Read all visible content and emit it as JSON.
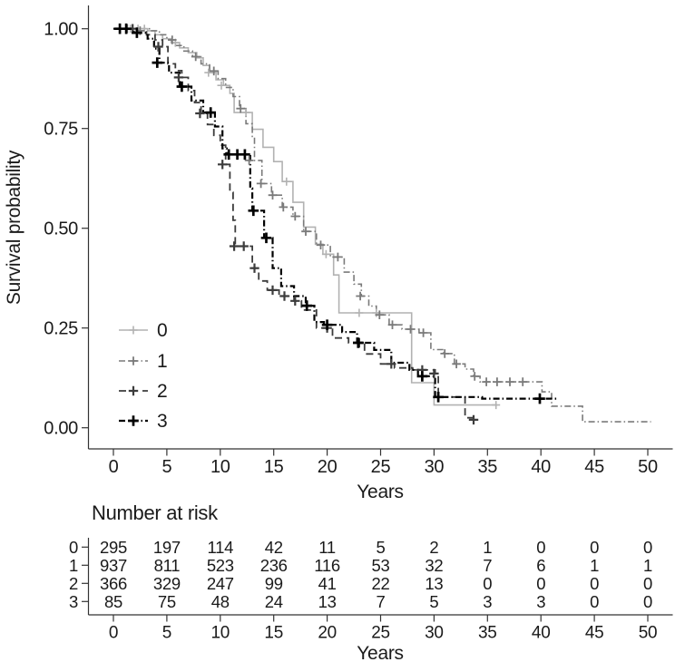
{
  "chart_data": {
    "type": "line",
    "subtype": "kaplan-meier-step",
    "title": "",
    "xlabel": "Years",
    "ylabel": "Survival probability",
    "xlim": [
      0,
      50
    ],
    "ylim": [
      0,
      1
    ],
    "grid": false,
    "x_ticks": [
      0,
      5,
      10,
      15,
      20,
      25,
      30,
      35,
      40,
      45,
      50
    ],
    "y_ticks": [
      {
        "value": 1.0,
        "label": "1.00"
      },
      {
        "value": 0.75,
        "label": "0.75"
      },
      {
        "value": 0.5,
        "label": "0.50"
      },
      {
        "value": 0.25,
        "label": "0.25"
      },
      {
        "value": 0.0,
        "label": "0.00"
      }
    ],
    "legend": {
      "position": "inside-lower-left",
      "entries": [
        "0",
        "1",
        "2",
        "3"
      ]
    },
    "series": [
      {
        "name": "0",
        "color": "#b2b2b2",
        "linetype": "solid",
        "steps": [
          [
            0,
            1.0
          ],
          [
            3.2,
            0.995
          ],
          [
            3.9,
            0.985
          ],
          [
            4.6,
            0.975
          ],
          [
            5.4,
            0.965
          ],
          [
            6.2,
            0.952
          ],
          [
            7.0,
            0.94
          ],
          [
            7.8,
            0.927
          ],
          [
            8.4,
            0.908
          ],
          [
            9.0,
            0.89
          ],
          [
            9.6,
            0.872
          ],
          [
            10.3,
            0.858
          ],
          [
            10.9,
            0.838
          ],
          [
            11.3,
            0.79
          ],
          [
            13.0,
            0.748
          ],
          [
            14.0,
            0.703
          ],
          [
            15.0,
            0.667
          ],
          [
            15.8,
            0.617
          ],
          [
            16.8,
            0.565
          ],
          [
            17.8,
            0.503
          ],
          [
            18.9,
            0.46
          ],
          [
            19.6,
            0.435
          ],
          [
            20.6,
            0.383
          ],
          [
            21.1,
            0.288
          ],
          [
            27.9,
            0.113
          ],
          [
            30.0,
            0.057
          ],
          [
            35.9,
            0.057
          ]
        ],
        "censors": [
          [
            1.6,
            1.0
          ],
          [
            2.3,
            1.0
          ],
          [
            2.9,
            1.0
          ],
          [
            5.8,
            0.965
          ],
          [
            8.9,
            0.89
          ],
          [
            10.1,
            0.858
          ],
          [
            12.4,
            0.79
          ],
          [
            16.2,
            0.617
          ],
          [
            19.9,
            0.435
          ],
          [
            23.0,
            0.288
          ],
          [
            24.6,
            0.288
          ],
          [
            35.8,
            0.057
          ]
        ]
      },
      {
        "name": "1",
        "color": "#7a7a7a",
        "linetype": "dashdot",
        "steps": [
          [
            0,
            1.0
          ],
          [
            3.5,
            0.995
          ],
          [
            4.3,
            0.985
          ],
          [
            5.0,
            0.972
          ],
          [
            5.8,
            0.958
          ],
          [
            6.6,
            0.944
          ],
          [
            7.4,
            0.93
          ],
          [
            8.2,
            0.912
          ],
          [
            9.0,
            0.894
          ],
          [
            9.8,
            0.875
          ],
          [
            10.5,
            0.853
          ],
          [
            11.2,
            0.83
          ],
          [
            11.8,
            0.8
          ],
          [
            12.4,
            0.762
          ],
          [
            13.0,
            0.73
          ],
          [
            13.2,
            0.67
          ],
          [
            13.9,
            0.612
          ],
          [
            14.8,
            0.583
          ],
          [
            15.8,
            0.553
          ],
          [
            16.8,
            0.53
          ],
          [
            17.8,
            0.492
          ],
          [
            19.0,
            0.458
          ],
          [
            20.3,
            0.428
          ],
          [
            21.6,
            0.39
          ],
          [
            22.5,
            0.36
          ],
          [
            23.2,
            0.33
          ],
          [
            23.9,
            0.305
          ],
          [
            24.6,
            0.283
          ],
          [
            25.8,
            0.258
          ],
          [
            27.0,
            0.247
          ],
          [
            28.6,
            0.238
          ],
          [
            29.7,
            0.196
          ],
          [
            30.9,
            0.186
          ],
          [
            31.9,
            0.16
          ],
          [
            32.9,
            0.147
          ],
          [
            33.7,
            0.129
          ],
          [
            34.3,
            0.115
          ],
          [
            40.1,
            0.09
          ],
          [
            41.0,
            0.054
          ],
          [
            43.9,
            0.015
          ],
          [
            50.3,
            0.015
          ]
        ],
        "censors": [
          [
            1.3,
            1.0
          ],
          [
            2.5,
            0.995
          ],
          [
            5.5,
            0.972
          ],
          [
            7.7,
            0.93
          ],
          [
            9.4,
            0.894
          ],
          [
            11.9,
            0.8
          ],
          [
            12.7,
            0.67
          ],
          [
            13.8,
            0.612
          ],
          [
            14.9,
            0.583
          ],
          [
            15.9,
            0.553
          ],
          [
            17.0,
            0.53
          ],
          [
            18.0,
            0.492
          ],
          [
            19.4,
            0.458
          ],
          [
            21.0,
            0.428
          ],
          [
            23.1,
            0.33
          ],
          [
            24.9,
            0.283
          ],
          [
            26.1,
            0.258
          ],
          [
            27.8,
            0.247
          ],
          [
            29.0,
            0.238
          ],
          [
            31.0,
            0.186
          ],
          [
            32.1,
            0.16
          ],
          [
            33.8,
            0.129
          ],
          [
            34.9,
            0.115
          ],
          [
            35.9,
            0.115
          ],
          [
            37.1,
            0.115
          ],
          [
            38.3,
            0.115
          ]
        ]
      },
      {
        "name": "2",
        "color": "#3c3c3c",
        "linetype": "dashed",
        "steps": [
          [
            0,
            1.0
          ],
          [
            2.3,
            0.995
          ],
          [
            3.1,
            0.985
          ],
          [
            3.9,
            0.972
          ],
          [
            4.6,
            0.955
          ],
          [
            5.1,
            0.912
          ],
          [
            5.8,
            0.895
          ],
          [
            6.4,
            0.878
          ],
          [
            7.0,
            0.845
          ],
          [
            7.6,
            0.815
          ],
          [
            8.2,
            0.788
          ],
          [
            8.8,
            0.76
          ],
          [
            9.4,
            0.733
          ],
          [
            10.0,
            0.708
          ],
          [
            10.5,
            0.66
          ],
          [
            10.9,
            0.59
          ],
          [
            11.2,
            0.52
          ],
          [
            11.4,
            0.455
          ],
          [
            13.0,
            0.4
          ],
          [
            13.6,
            0.368
          ],
          [
            14.4,
            0.345
          ],
          [
            15.5,
            0.33
          ],
          [
            16.9,
            0.318
          ],
          [
            17.6,
            0.295
          ],
          [
            19.0,
            0.25
          ],
          [
            20.5,
            0.225
          ],
          [
            22.0,
            0.213
          ],
          [
            23.5,
            0.185
          ],
          [
            25.0,
            0.16
          ],
          [
            26.3,
            0.15
          ],
          [
            28.0,
            0.145
          ],
          [
            30.1,
            0.136
          ],
          [
            30.4,
            0.077
          ],
          [
            32.9,
            0.025
          ],
          [
            33.8,
            0.02
          ]
        ],
        "censors": [
          [
            1.8,
            1.0
          ],
          [
            4.2,
            0.955
          ],
          [
            6.1,
            0.878
          ],
          [
            8.1,
            0.788
          ],
          [
            10.2,
            0.66
          ],
          [
            11.3,
            0.455
          ],
          [
            12.2,
            0.455
          ],
          [
            13.2,
            0.4
          ],
          [
            14.9,
            0.345
          ],
          [
            16.0,
            0.33
          ],
          [
            17.0,
            0.318
          ],
          [
            20.0,
            0.25
          ],
          [
            23.0,
            0.213
          ],
          [
            26.0,
            0.16
          ],
          [
            28.9,
            0.145
          ],
          [
            30.0,
            0.136
          ],
          [
            33.7,
            0.02
          ]
        ]
      },
      {
        "name": "3",
        "color": "#000000",
        "linetype": "dashdot",
        "steps": [
          [
            0,
            1.0
          ],
          [
            1.9,
            0.99
          ],
          [
            3.2,
            0.975
          ],
          [
            3.8,
            0.95
          ],
          [
            4.3,
            0.915
          ],
          [
            5.2,
            0.89
          ],
          [
            6.2,
            0.855
          ],
          [
            7.3,
            0.82
          ],
          [
            8.4,
            0.79
          ],
          [
            9.5,
            0.755
          ],
          [
            10.2,
            0.7
          ],
          [
            10.6,
            0.685
          ],
          [
            12.8,
            0.6
          ],
          [
            13.0,
            0.544
          ],
          [
            14.1,
            0.476
          ],
          [
            14.9,
            0.4
          ],
          [
            15.7,
            0.355
          ],
          [
            16.9,
            0.33
          ],
          [
            18.0,
            0.306
          ],
          [
            18.8,
            0.265
          ],
          [
            19.7,
            0.258
          ],
          [
            21.4,
            0.24
          ],
          [
            22.8,
            0.213
          ],
          [
            24.4,
            0.195
          ],
          [
            26.0,
            0.163
          ],
          [
            27.7,
            0.145
          ],
          [
            28.5,
            0.129
          ],
          [
            30.1,
            0.077
          ],
          [
            34.5,
            0.073
          ],
          [
            41.5,
            0.073
          ]
        ],
        "censors": [
          [
            0.6,
            1.0
          ],
          [
            1.2,
            1.0
          ],
          [
            2.2,
            0.99
          ],
          [
            4.1,
            0.915
          ],
          [
            6.4,
            0.855
          ],
          [
            9.1,
            0.79
          ],
          [
            10.8,
            0.685
          ],
          [
            11.6,
            0.685
          ],
          [
            12.3,
            0.685
          ],
          [
            13.1,
            0.544
          ],
          [
            14.3,
            0.476
          ],
          [
            18.1,
            0.306
          ],
          [
            20.0,
            0.258
          ],
          [
            22.9,
            0.213
          ],
          [
            28.9,
            0.129
          ],
          [
            30.4,
            0.077
          ],
          [
            39.9,
            0.073
          ]
        ]
      }
    ],
    "risk_table": {
      "title": "Number at risk",
      "xlabel": "Years",
      "times": [
        0,
        5,
        10,
        15,
        20,
        25,
        30,
        35,
        40,
        45,
        50
      ],
      "rows": [
        {
          "label": "0",
          "counts": [
            295,
            197,
            114,
            42,
            11,
            5,
            2,
            1,
            0,
            0,
            0
          ]
        },
        {
          "label": "1",
          "counts": [
            937,
            811,
            523,
            236,
            116,
            53,
            32,
            7,
            6,
            1,
            1
          ]
        },
        {
          "label": "2",
          "counts": [
            366,
            329,
            247,
            99,
            41,
            22,
            13,
            0,
            0,
            0,
            0
          ]
        },
        {
          "label": "3",
          "counts": [
            85,
            75,
            48,
            24,
            13,
            7,
            5,
            3,
            3,
            0,
            0
          ]
        }
      ]
    }
  }
}
